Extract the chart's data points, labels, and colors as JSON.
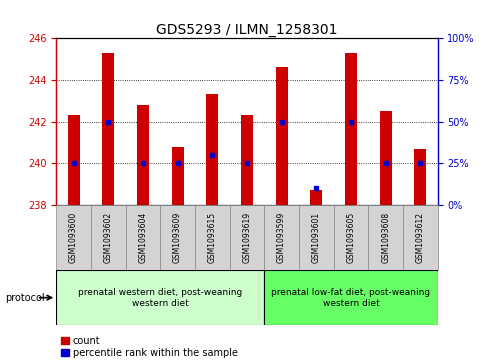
{
  "title": "GDS5293 / ILMN_1258301",
  "samples": [
    "GSM1093600",
    "GSM1093602",
    "GSM1093604",
    "GSM1093609",
    "GSM1093615",
    "GSM1093619",
    "GSM1093599",
    "GSM1093601",
    "GSM1093605",
    "GSM1093608",
    "GSM1093612"
  ],
  "bar_heights": [
    242.3,
    245.3,
    242.8,
    240.8,
    243.3,
    242.3,
    244.6,
    238.7,
    245.3,
    242.5,
    240.7
  ],
  "percentile_pct": [
    25,
    50,
    25,
    25,
    30,
    25,
    50,
    10,
    50,
    25,
    25
  ],
  "bar_color": "#cc0000",
  "percentile_color": "#0000cc",
  "baseline": 238,
  "ylim_left": [
    238,
    246
  ],
  "ylim_right": [
    0,
    100
  ],
  "yticks_left": [
    238,
    240,
    242,
    244,
    246
  ],
  "yticks_right": [
    0,
    25,
    50,
    75,
    100
  ],
  "group1_count": 6,
  "group1_label": "prenatal western diet, post-weaning\nwestern diet",
  "group2_label": "prenatal low-fat diet, post-weaning\nwestern diet",
  "group1_color": "#ccffcc",
  "group2_color": "#66ff66",
  "sample_box_color": "#d3d3d3",
  "protocol_label": "protocol",
  "legend_count_label": "count",
  "legend_pct_label": "percentile rank within the sample",
  "title_fontsize": 10,
  "tick_fontsize": 7,
  "sample_fontsize": 5.5,
  "proto_fontsize": 6.5,
  "legend_fontsize": 7
}
